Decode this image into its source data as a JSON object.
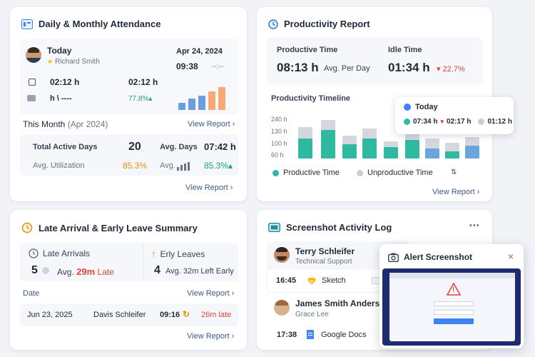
{
  "attendance": {
    "title": "Daily & Monthly Attendance",
    "today_label": "Today",
    "user_name": "Richard Smith",
    "time_in": "02:12 h",
    "time_right": "02:12 h",
    "break_text": "h \\ ----",
    "percent": "77.8%▴",
    "date": "Apr 24, 2024",
    "clock": "09:38",
    "clock_dashes": "--:--",
    "month_label": "This Month",
    "month_sub": "(Apr 2024)",
    "view_report": "View Report ›",
    "total_active_days_label": "Total Active Days",
    "total_active_days": "20",
    "avg_days_label": "Avg. Days",
    "avg_days": "07:42 h",
    "avg_util_label": "Avg. Utilization",
    "avg_util": "85.3%",
    "avg_label2": "Avg.",
    "avg_value2": "85.3%▴",
    "view_report2": "View Report ›"
  },
  "productivity": {
    "title": "Productivity Report",
    "productive_time_label": "Productive Time",
    "productive_time": "08:13 h",
    "avg_per_day": "Avg. Per Day",
    "idle_time_label": "Idle Time",
    "idle_time": "01:34 h",
    "idle_change": "▾ 22.7%",
    "timeline_title": "Productivity Timeline",
    "y_labels": [
      "240 h",
      "130 h",
      "100 h",
      "60 h"
    ],
    "legend_productive": "Productive Time",
    "legend_unproductive": "Unproductive Time",
    "view_report": "View Report ›",
    "tooltip_title": "Today",
    "tooltip_v1": "07:34 h",
    "tooltip_v2": "02:17 h",
    "tooltip_v3": "01:12 h",
    "colors": {
      "productive": "#2fb9a1",
      "unproductive": "#c8ccd4",
      "accent": "#3b82f6"
    }
  },
  "late": {
    "title": "Late Arrival & Early Leave Summary",
    "late_label": "Late Arrivals",
    "late_count": "5",
    "late_avg_label": "Avg.",
    "late_avg": "29m",
    "late_word": "Late",
    "early_label": "Erly Leaves",
    "early_count": "4",
    "early_avg": "Avg. 32m Left Early",
    "date_label": "Date",
    "view_report": "View Report ›",
    "row_date": "Jun 23, 2025",
    "row_name": "Davis Schleifer",
    "row_time": "09:16",
    "row_late": "26m late",
    "view_report2": "View Report ›"
  },
  "screenshot": {
    "title": "Screenshot Activity Log",
    "more": "•••",
    "user1_name": "Terry Schleifer",
    "user1_role": "Technical Support",
    "user1_time": "16:45",
    "user1_app": "Sketch",
    "user2_name": "James Smith Anders",
    "user2_role": "Grace Lee",
    "user2_time": "17:38",
    "user2_app": "Google Docs",
    "alert_title": "Alert Screenshot",
    "alert_close": "×",
    "alert_mark": "!"
  }
}
